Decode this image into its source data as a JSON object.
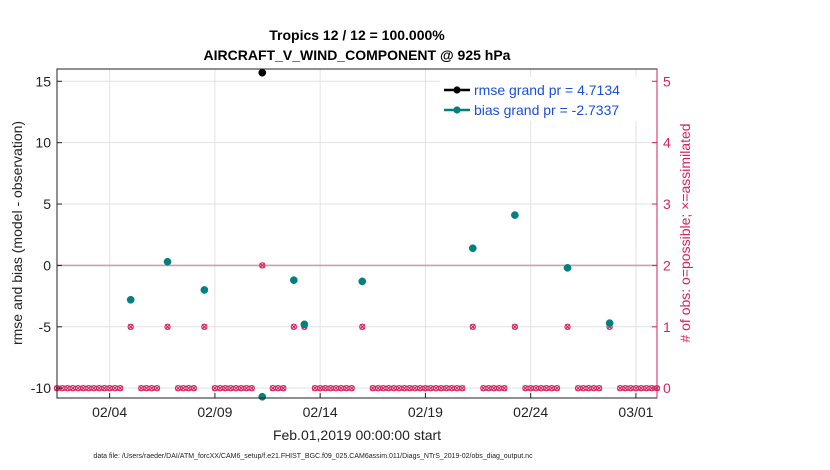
{
  "chart_data": {
    "type": "scatter",
    "title": "Tropics 12 / 12 = 100.000%",
    "subtitle": "AIRCRAFT_V_WIND_COMPONENT @ 925 hPa",
    "xlabel": "Feb.01,2019 00:00:00 start",
    "ylabel": "rmse and bias (model - observation)",
    "ylabel_right": "# of obs: o=possible; ×=assimilated",
    "xlim": [
      0,
      28.5
    ],
    "ylim": [
      -10.8,
      16
    ],
    "ylim_right": [
      -0.16,
      5.2
    ],
    "x_ticks": [
      {
        "value": 2.5,
        "label": "02/04"
      },
      {
        "value": 7.5,
        "label": "02/09"
      },
      {
        "value": 12.5,
        "label": "02/14"
      },
      {
        "value": 17.5,
        "label": "02/19"
      },
      {
        "value": 22.5,
        "label": "02/24"
      },
      {
        "value": 27.5,
        "label": "03/01"
      }
    ],
    "y_ticks": [
      {
        "value": 15,
        "label": "15"
      },
      {
        "value": 10,
        "label": "10"
      },
      {
        "value": 5,
        "label": "5"
      },
      {
        "value": 0,
        "label": "0"
      },
      {
        "value": -5,
        "label": "-5"
      },
      {
        "value": -10,
        "label": "-10"
      }
    ],
    "y_ticks_right": [
      {
        "value": 0,
        "label": "0"
      },
      {
        "value": 1,
        "label": "1"
      },
      {
        "value": 2,
        "label": "2"
      },
      {
        "value": 3,
        "label": "3"
      },
      {
        "value": 4,
        "label": "4"
      },
      {
        "value": 5,
        "label": "5"
      }
    ],
    "zero_line": 0,
    "series": [
      {
        "name": "rmse",
        "legend": "rmse grand pr = 4.7134",
        "color": "#000000",
        "axis": "left",
        "points": [
          {
            "x": 9.75,
            "y": 15.7
          }
        ]
      },
      {
        "name": "bias",
        "legend": "bias grand pr = -2.7337",
        "color": "#008080",
        "axis": "left",
        "points": [
          {
            "x": 3.5,
            "y": -2.8
          },
          {
            "x": 5.25,
            "y": 0.3
          },
          {
            "x": 7.0,
            "y": -2.0
          },
          {
            "x": 9.75,
            "y": -10.7
          },
          {
            "x": 11.25,
            "y": -1.2
          },
          {
            "x": 11.75,
            "y": -4.8
          },
          {
            "x": 14.5,
            "y": -1.3
          },
          {
            "x": 19.75,
            "y": 1.4
          },
          {
            "x": 21.75,
            "y": 4.1
          },
          {
            "x": 24.25,
            "y": -0.2
          },
          {
            "x": 26.25,
            "y": -4.7
          }
        ]
      },
      {
        "name": "obs possible",
        "color": "#d6215f",
        "axis": "right",
        "marker": "o",
        "points_step": 0.25,
        "nonzero": [
          {
            "x": 3.5,
            "y": 1
          },
          {
            "x": 5.25,
            "y": 1
          },
          {
            "x": 7.0,
            "y": 1
          },
          {
            "x": 9.75,
            "y": 2
          },
          {
            "x": 11.25,
            "y": 1
          },
          {
            "x": 11.75,
            "y": 1
          },
          {
            "x": 14.5,
            "y": 1
          },
          {
            "x": 19.75,
            "y": 1
          },
          {
            "x": 21.75,
            "y": 1
          },
          {
            "x": 24.25,
            "y": 1
          },
          {
            "x": 26.25,
            "y": 1
          }
        ],
        "gaps": [
          3.25,
          3.75,
          5.0,
          5.5,
          6.75,
          7.25,
          9.5,
          10.0,
          11.0,
          11.5,
          12.0,
          14.25,
          14.75,
          19.5,
          20.0,
          21.5,
          22.0,
          24.0,
          24.5,
          26.0,
          26.5
        ]
      },
      {
        "name": "obs assimilated",
        "color": "#d6215f",
        "axis": "right",
        "marker": "x",
        "same_as": "obs possible"
      }
    ],
    "legend_position": "top-right"
  },
  "footer": "data file: /Users/raeder/DAI/ATM_forcXX/CAM6_setup/f.e21.FHIST_BGC.f09_025.CAM6assim.011/Diags_NTrS_2019-02/obs_diag_output.nc",
  "colors": {
    "left_axis": "#222222",
    "right_axis": "#d6215f",
    "rmse": "#000000",
    "bias": "#008080",
    "obs": "#d6215f",
    "legend_text": "#1a4fd6"
  }
}
